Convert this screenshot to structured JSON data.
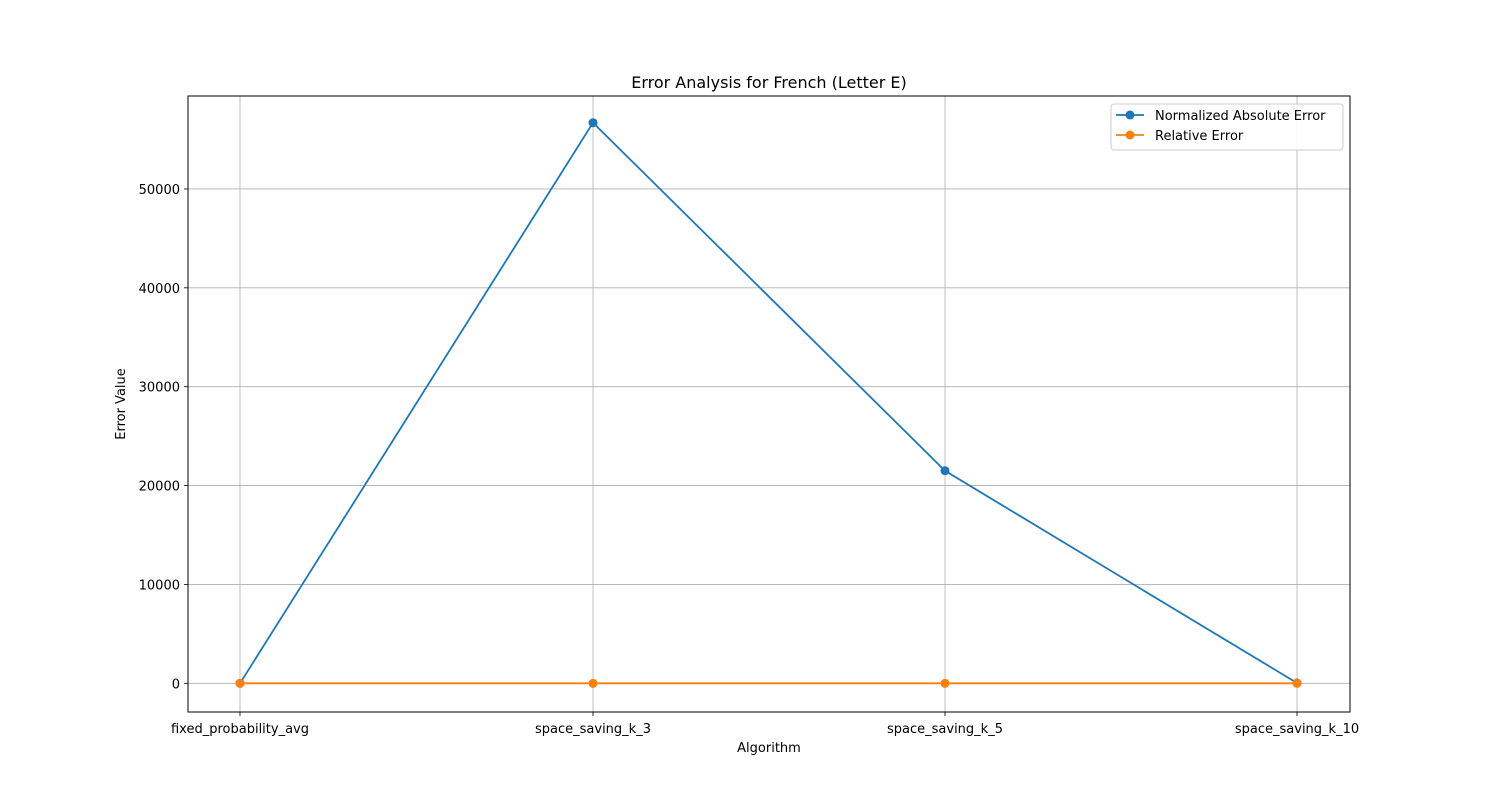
{
  "chart_data": {
    "type": "line",
    "title": "Error Analysis for French (Letter E)",
    "xlabel": "Algorithm",
    "ylabel": "Error Value",
    "categories": [
      "fixed_probability_avg",
      "space_saving_k_3",
      "space_saving_k_5",
      "space_saving_k_10"
    ],
    "ylim": [
      -2900,
      59400
    ],
    "yticks": [
      0,
      10000,
      20000,
      30000,
      40000,
      50000
    ],
    "ytick_labels": [
      "0",
      "10000",
      "20000",
      "30000",
      "40000",
      "50000"
    ],
    "grid": true,
    "legend_position": "top-right",
    "series": [
      {
        "name": "Normalized Absolute Error",
        "color": "#1f77b4",
        "marker": "circle",
        "values": [
          0,
          56700,
          21500,
          30
        ]
      },
      {
        "name": "Relative Error",
        "color": "#ff7f0e",
        "marker": "circle",
        "values": [
          0,
          0.5,
          0.4,
          0.1
        ]
      }
    ]
  }
}
